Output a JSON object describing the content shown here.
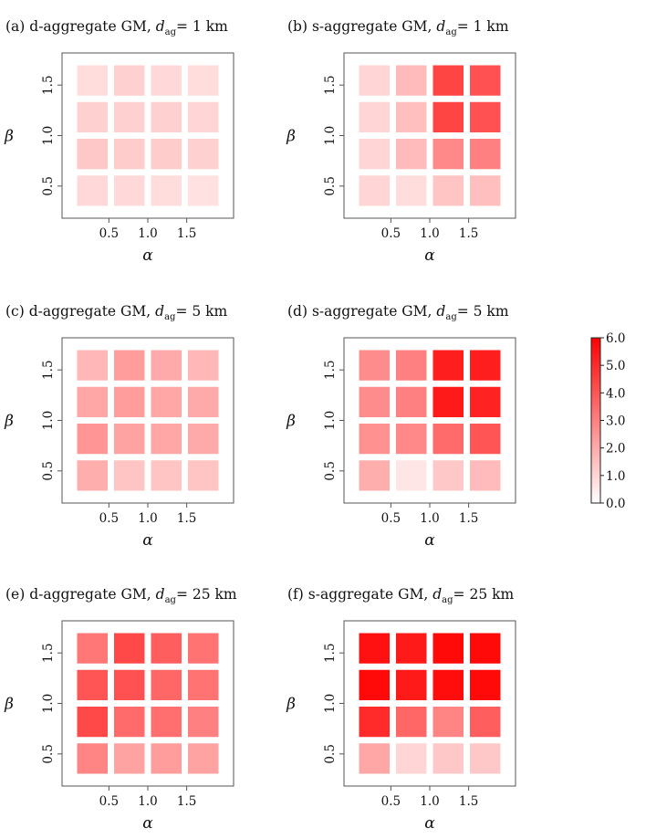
{
  "chart_data": [
    {
      "type": "heatmap",
      "panel_label": "(a)",
      "title": "d-aggregate GM, ",
      "title_var": "d",
      "title_sub": "ag",
      "title_tail": "= 1 km",
      "xlabel": "α",
      "ylabel": "β",
      "x": [
        0.375,
        0.875,
        1.125,
        1.625
      ],
      "y": [
        0.375,
        0.875,
        1.125,
        1.625
      ],
      "xticks": [
        "0.5",
        "1.0",
        "1.5"
      ],
      "yticks": [
        "0.5",
        "1.0",
        "1.5"
      ],
      "values": [
        [
          0.9,
          0.9,
          0.8,
          0.7
        ],
        [
          1.3,
          1.2,
          1.2,
          1.1
        ],
        [
          1.1,
          1.1,
          1.1,
          1.0
        ],
        [
          0.8,
          1.1,
          0.9,
          0.8
        ]
      ]
    },
    {
      "type": "heatmap",
      "panel_label": "(b)",
      "title": "s-aggregate GM, ",
      "title_var": "d",
      "title_sub": "ag",
      "title_tail": "= 1 km",
      "xlabel": "α",
      "ylabel": "β",
      "x": [
        0.375,
        0.875,
        1.125,
        1.625
      ],
      "y": [
        0.375,
        0.875,
        1.125,
        1.625
      ],
      "xticks": [
        "0.5",
        "1.0",
        "1.5"
      ],
      "yticks": [
        "0.5",
        "1.0",
        "1.5"
      ],
      "values": [
        [
          1.0,
          0.8,
          1.4,
          1.5
        ],
        [
          1.0,
          1.6,
          2.8,
          3.0
        ],
        [
          1.0,
          1.5,
          4.4,
          4.1
        ],
        [
          1.0,
          1.6,
          4.4,
          4.1
        ]
      ]
    },
    {
      "type": "heatmap",
      "panel_label": "(c)",
      "title": "d-aggregate GM, ",
      "title_var": "d",
      "title_sub": "ag",
      "title_tail": "= 5 km",
      "xlabel": "α",
      "ylabel": "β",
      "x": [
        0.375,
        0.875,
        1.125,
        1.625
      ],
      "y": [
        0.375,
        0.875,
        1.125,
        1.625
      ],
      "xticks": [
        "0.5",
        "1.0",
        "1.5"
      ],
      "yticks": [
        "0.5",
        "1.0",
        "1.5"
      ],
      "values": [
        [
          1.9,
          1.4,
          1.4,
          1.4
        ],
        [
          2.5,
          2.2,
          2.1,
          2.0
        ],
        [
          2.1,
          2.3,
          2.1,
          2.0
        ],
        [
          1.7,
          2.3,
          2.0,
          1.7
        ]
      ]
    },
    {
      "type": "heatmap",
      "panel_label": "(d)",
      "title": "s-aggregate GM, ",
      "title_var": "d",
      "title_sub": "ag",
      "title_tail": "= 5 km",
      "xlabel": "α",
      "ylabel": "β",
      "x": [
        0.375,
        0.875,
        1.125,
        1.625
      ],
      "y": [
        0.375,
        0.875,
        1.125,
        1.625
      ],
      "xticks": [
        "0.5",
        "1.0",
        "1.5"
      ],
      "yticks": [
        "0.5",
        "1.0",
        "1.5"
      ],
      "values": [
        [
          1.9,
          0.6,
          1.3,
          1.6
        ],
        [
          2.6,
          2.8,
          3.5,
          4.0
        ],
        [
          2.7,
          3.0,
          5.4,
          5.2
        ],
        [
          2.7,
          3.0,
          5.3,
          5.3
        ]
      ]
    },
    {
      "type": "heatmap",
      "panel_label": "(e)",
      "title": "d-aggregate GM, ",
      "title_var": "d",
      "title_sub": "ag",
      "title_tail": "= 25 km",
      "xlabel": "α",
      "ylabel": "β",
      "x": [
        0.375,
        0.875,
        1.125,
        1.625
      ],
      "y": [
        0.375,
        0.875,
        1.125,
        1.625
      ],
      "xticks": [
        "0.5",
        "1.0",
        "1.5"
      ],
      "yticks": [
        "0.5",
        "1.0",
        "1.5"
      ],
      "values": [
        [
          2.9,
          2.2,
          2.3,
          2.2
        ],
        [
          4.3,
          3.5,
          3.4,
          3.0
        ],
        [
          4.0,
          4.1,
          3.6,
          3.3
        ],
        [
          3.2,
          4.3,
          3.8,
          3.3
        ]
      ]
    },
    {
      "type": "heatmap",
      "panel_label": "(f)",
      "title": "s-aggregate GM, ",
      "title_var": "d",
      "title_sub": "ag",
      "title_tail": "= 25 km",
      "xlabel": "α",
      "ylabel": "β",
      "x": [
        0.375,
        0.875,
        1.125,
        1.625
      ],
      "y": [
        0.375,
        0.875,
        1.125,
        1.625
      ],
      "xticks": [
        "0.5",
        "1.0",
        "1.5"
      ],
      "yticks": [
        "0.5",
        "1.0",
        "1.5"
      ],
      "values": [
        [
          2.1,
          1.0,
          1.3,
          1.3
        ],
        [
          5.0,
          3.6,
          2.9,
          3.8
        ],
        [
          5.8,
          5.4,
          5.7,
          5.8
        ],
        [
          5.6,
          5.4,
          5.8,
          5.8
        ]
      ]
    }
  ],
  "colorbar": {
    "min": 0.0,
    "max": 6.0,
    "ticks": [
      "0.0",
      "1.0",
      "2.0",
      "3.0",
      "4.0",
      "5.0",
      "6.0"
    ],
    "low_color": "#ffffff",
    "high_color": "#ff0000"
  }
}
